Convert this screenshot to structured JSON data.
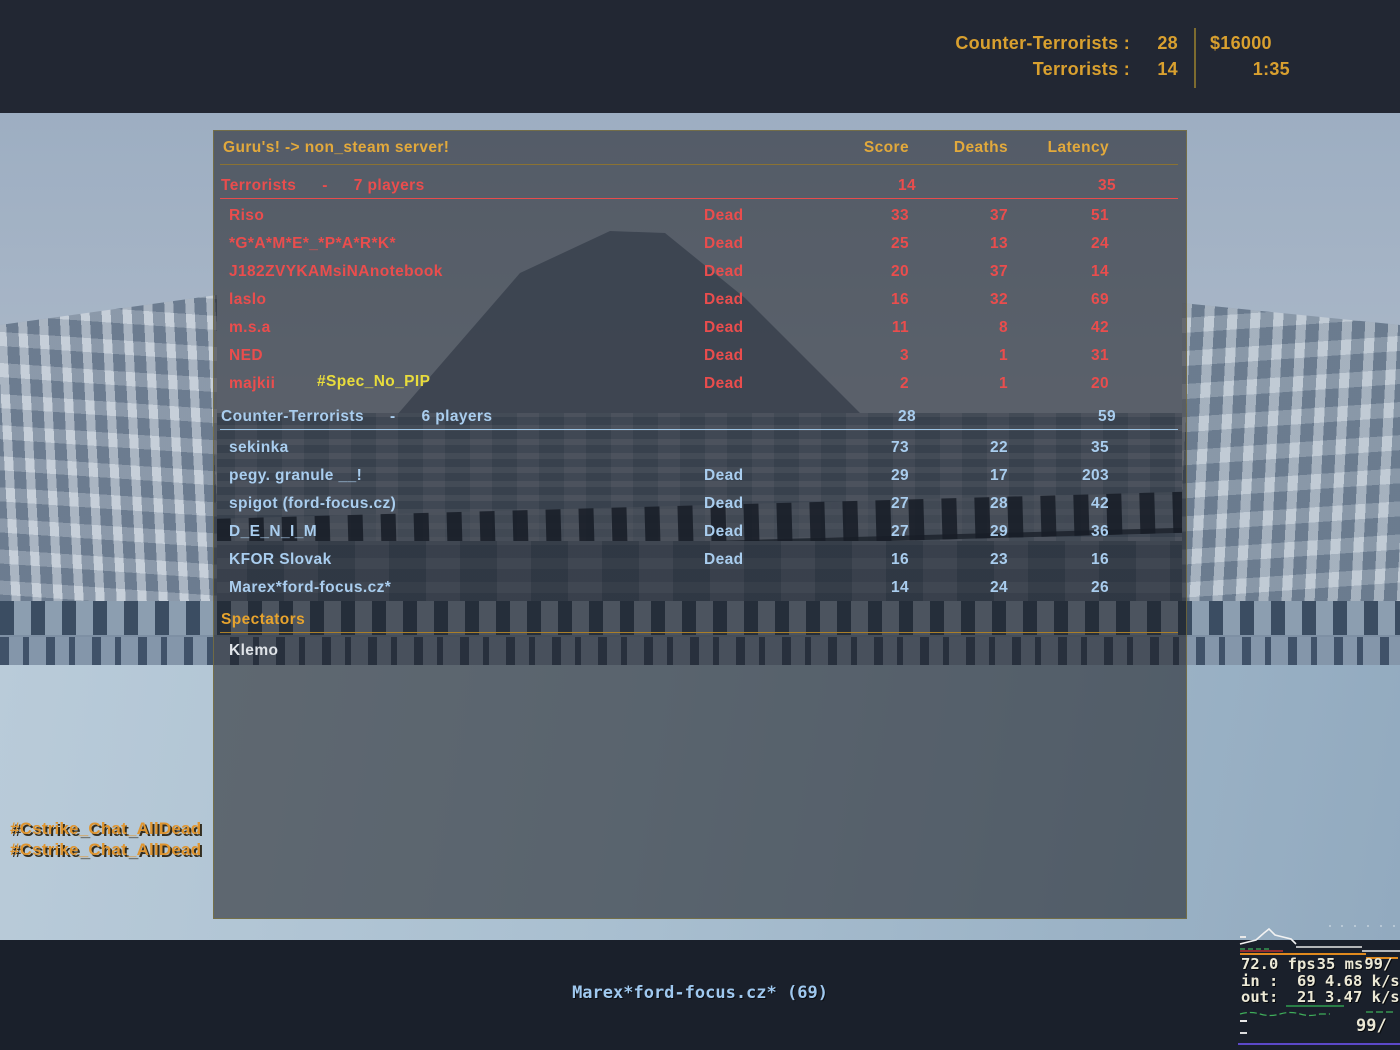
{
  "hud": {
    "ct_label": "Counter-Terrorists :",
    "ct_value": "28",
    "t_label": "Terrorists :",
    "t_value": "14",
    "money": "$16000",
    "time": "1:35"
  },
  "scoreboard": {
    "server_title": "Guru's! -> non_steam server!",
    "columns": {
      "score": "Score",
      "deaths": "Deaths",
      "latency": "Latency"
    },
    "teams": [
      {
        "name": "Terrorists",
        "sep": "-",
        "players_count": "7 players",
        "score": "14",
        "latency": "35",
        "players": [
          {
            "name": "Riso",
            "status": "Dead",
            "score": "33",
            "deaths": "37",
            "latency": "51"
          },
          {
            "name": "*G*A*M*E*_*P*A*R*K*",
            "status": "Dead",
            "score": "25",
            "deaths": "13",
            "latency": "24"
          },
          {
            "name": "J182ZVYKAMsiNAnotebook",
            "status": "Dead",
            "score": "20",
            "deaths": "37",
            "latency": "14"
          },
          {
            "name": "laslo",
            "status": "Dead",
            "score": "16",
            "deaths": "32",
            "latency": "69"
          },
          {
            "name": "m.s.a",
            "status": "Dead",
            "score": "11",
            "deaths": "8",
            "latency": "42"
          },
          {
            "name": "NED",
            "status": "Dead",
            "score": "3",
            "deaths": "1",
            "latency": "31"
          },
          {
            "name": "majkii",
            "tag": "#Spec_No_PIP",
            "status": "Dead",
            "score": "2",
            "deaths": "1",
            "latency": "20"
          }
        ]
      },
      {
        "name": "Counter-Terrorists",
        "sep": "-",
        "players_count": "6 players",
        "score": "28",
        "latency": "59",
        "players": [
          {
            "name": "sekinka",
            "status": "",
            "score": "73",
            "deaths": "22",
            "latency": "35"
          },
          {
            "name": "pegy. granule __!",
            "status": "Dead",
            "score": "29",
            "deaths": "17",
            "latency": "203"
          },
          {
            "name": "spigot (ford-focus.cz)",
            "status": "Dead",
            "score": "27",
            "deaths": "28",
            "latency": "42"
          },
          {
            "name": "D_E_N_I_M",
            "status": "Dead",
            "score": "27",
            "deaths": "29",
            "latency": "36"
          },
          {
            "name": "KFOR Slovak",
            "status": "Dead",
            "score": "16",
            "deaths": "23",
            "latency": "16"
          },
          {
            "name": "Marex*ford-focus.cz*",
            "status": "",
            "score": "14",
            "deaths": "24",
            "latency": "26"
          }
        ]
      }
    ],
    "spectators": {
      "label": "Spectators",
      "names": [
        "Klemo"
      ]
    }
  },
  "chat": {
    "lines": [
      "#Cstrike_Chat_AllDead",
      "#Cstrike_Chat_AllDead"
    ]
  },
  "spectating": {
    "text": "Marex*ford-focus.cz* (69)"
  },
  "netgraph": {
    "fps": "72.0 fps",
    "ms": "35 ms",
    "loss_top": "99/",
    "in_line": "in :  69 4.68 k/s",
    "out_line": "out:  21 3.47 k/s",
    "loss_bottom": "99/"
  },
  "colors": {
    "hud_orange": "#d9a02f",
    "gold": "#e2a93c",
    "terrorist_red": "#ea4d4d",
    "ct_blue": "#a9cdee",
    "spectator_white": "#dfe3e8",
    "tag_yellow": "#e8dc3c",
    "chat_orange": "#df9530",
    "spectating_blue": "#9fc8ef",
    "netgraph_cream": "#ece9d6",
    "net_orange": "#e08a1e",
    "net_green": "#3fae5a",
    "net_purple": "#5c49c8",
    "net_red": "#c03030"
  }
}
